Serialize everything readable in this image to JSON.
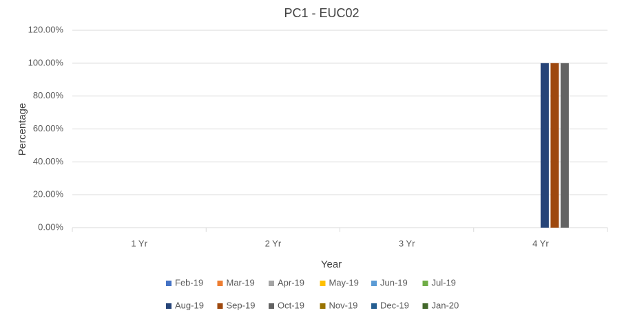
{
  "chart_data": {
    "type": "bar",
    "title": "PC1 - EUC02",
    "x_label": "Year",
    "y_label": "Percentage",
    "categories": [
      "1 Yr",
      "2 Yr",
      "3 Yr",
      "4 Yr"
    ],
    "series": [
      {
        "name": "Feb-19",
        "color": "#4472c4",
        "values": [
          0,
          0,
          0,
          0
        ]
      },
      {
        "name": "Mar-19",
        "color": "#ed7d31",
        "values": [
          0,
          0,
          0,
          0
        ]
      },
      {
        "name": "Apr-19",
        "color": "#a5a5a5",
        "values": [
          0,
          0,
          0,
          0
        ]
      },
      {
        "name": "May-19",
        "color": "#ffc000",
        "values": [
          0,
          0,
          0,
          0
        ]
      },
      {
        "name": "Jun-19",
        "color": "#5b9bd5",
        "values": [
          0,
          0,
          0,
          0
        ]
      },
      {
        "name": "Jul-19",
        "color": "#70ad47",
        "values": [
          0,
          0,
          0,
          0
        ]
      },
      {
        "name": "Aug-19",
        "color": "#264478",
        "values": [
          0,
          0,
          0,
          100
        ]
      },
      {
        "name": "Sep-19",
        "color": "#9e480e",
        "values": [
          0,
          0,
          0,
          100
        ]
      },
      {
        "name": "Oct-19",
        "color": "#636363",
        "values": [
          0,
          0,
          0,
          100
        ]
      },
      {
        "name": "Nov-19",
        "color": "#997300",
        "values": [
          0,
          0,
          0,
          0
        ]
      },
      {
        "name": "Dec-19",
        "color": "#255e91",
        "values": [
          0,
          0,
          0,
          0
        ]
      },
      {
        "name": "Jan-20",
        "color": "#43682b",
        "values": [
          0,
          0,
          0,
          0
        ]
      }
    ],
    "ylim": [
      0,
      120
    ],
    "yticks": [
      {
        "value": 0,
        "label": "0.00%"
      },
      {
        "value": 20,
        "label": "20.00%"
      },
      {
        "value": 40,
        "label": "40.00%"
      },
      {
        "value": 60,
        "label": "60.00%"
      },
      {
        "value": 80,
        "label": "80.00%"
      },
      {
        "value": 100,
        "label": "100.00%"
      },
      {
        "value": 120,
        "label": "120.00%"
      }
    ],
    "grid": true,
    "legend": "bottom"
  }
}
